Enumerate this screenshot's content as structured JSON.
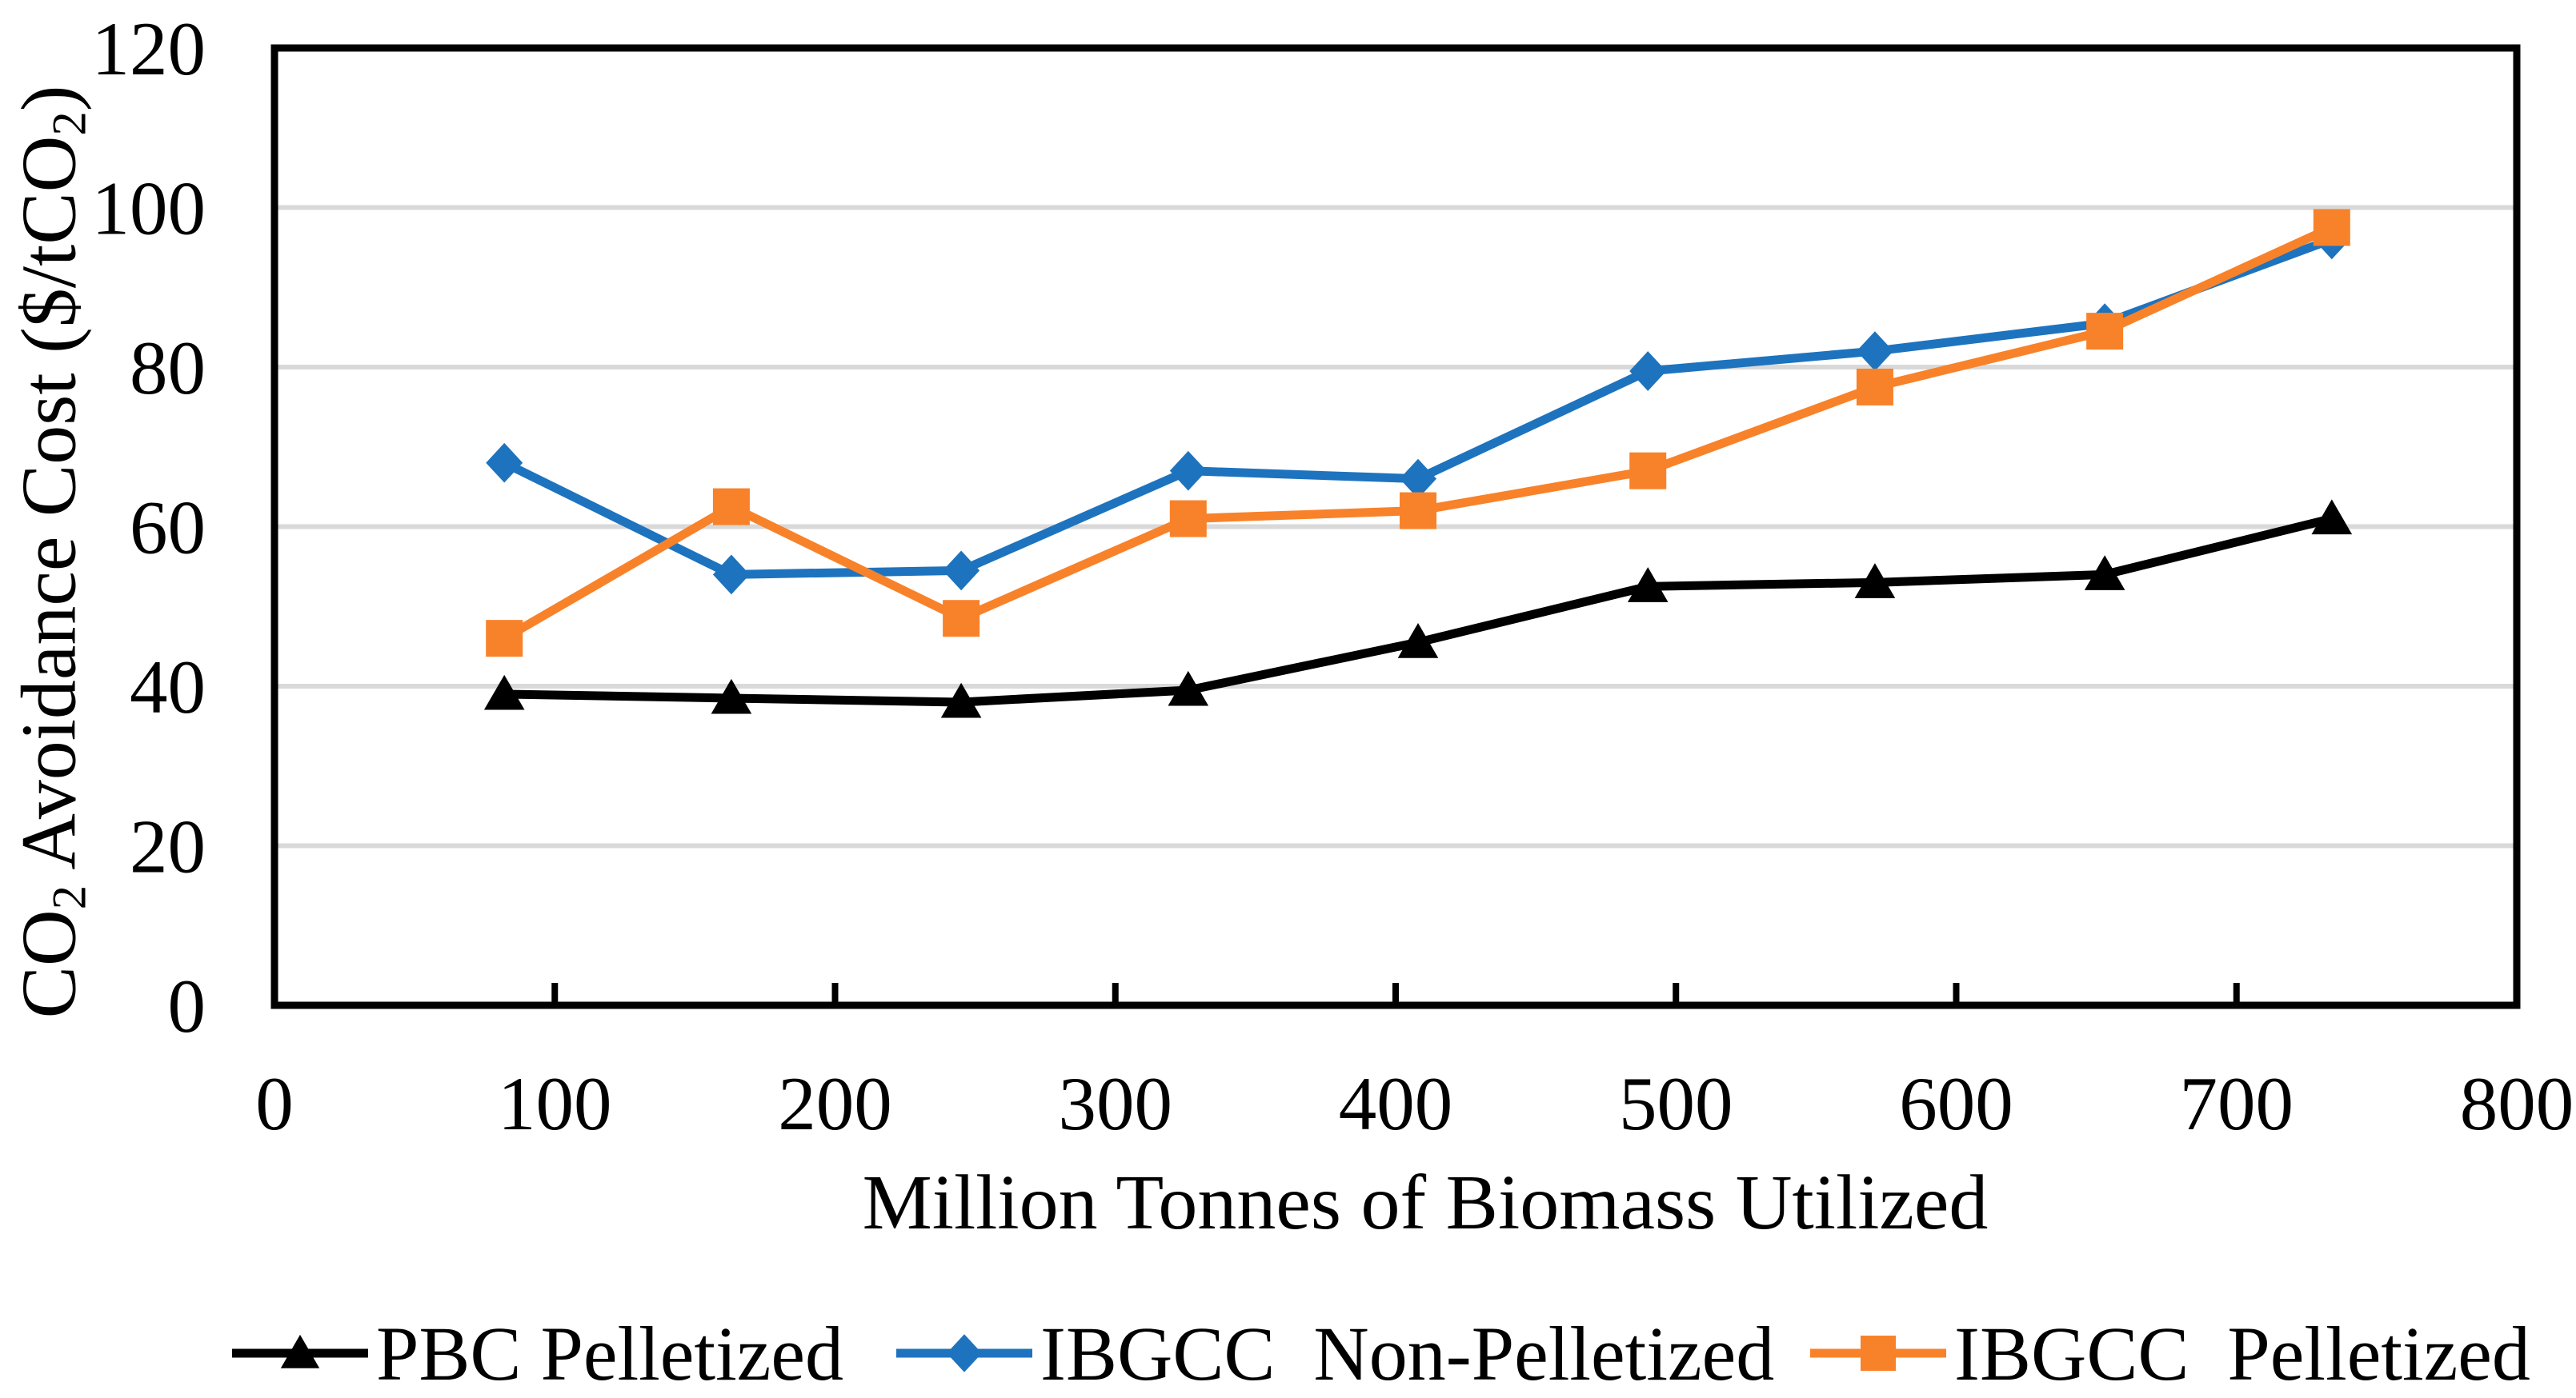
{
  "chart_data": {
    "type": "line",
    "title": "",
    "xlabel": "Million Tonnes of Biomass Utilized",
    "ylabel": "CO₂ Avoidance Cost ($/tCO₂)",
    "ylabel_parts": [
      [
        "t",
        "CO"
      ],
      [
        "sub",
        "2"
      ],
      [
        "t",
        " Avoidance Cost ($/tCO"
      ],
      [
        "sub",
        "2"
      ],
      [
        "t",
        ")"
      ]
    ],
    "xlim": [
      0,
      800
    ],
    "ylim": [
      0,
      120
    ],
    "xticks": [
      0,
      100,
      200,
      300,
      400,
      500,
      600,
      700,
      800
    ],
    "yticks": [
      0,
      20,
      40,
      60,
      80,
      100,
      120
    ],
    "grid": "horizontal",
    "legend_position": "bottom",
    "x": [
      82,
      163,
      245,
      326,
      408,
      490,
      571,
      653,
      734
    ],
    "series": [
      {
        "name": "PBC Pelletized",
        "color": "#000000",
        "marker": "triangle",
        "values": [
          39,
          38.5,
          38,
          39.5,
          45.5,
          52.5,
          53,
          54,
          61
        ]
      },
      {
        "name": "IBGCC  Non-Pelletized",
        "color": "#1E73BE",
        "marker": "diamond",
        "values": [
          68,
          54,
          54.5,
          67,
          66,
          79.5,
          82,
          85.5,
          96
        ]
      },
      {
        "name": "IBGCC  Pelletized",
        "color": "#F8822A",
        "marker": "square",
        "values": [
          46,
          62.5,
          48.5,
          61,
          62,
          67,
          77.5,
          84.5,
          97.5
        ]
      }
    ],
    "colors": {
      "gridline": "#D9D9D9",
      "axis": "#000000",
      "background": "#FFFFFF"
    }
  }
}
